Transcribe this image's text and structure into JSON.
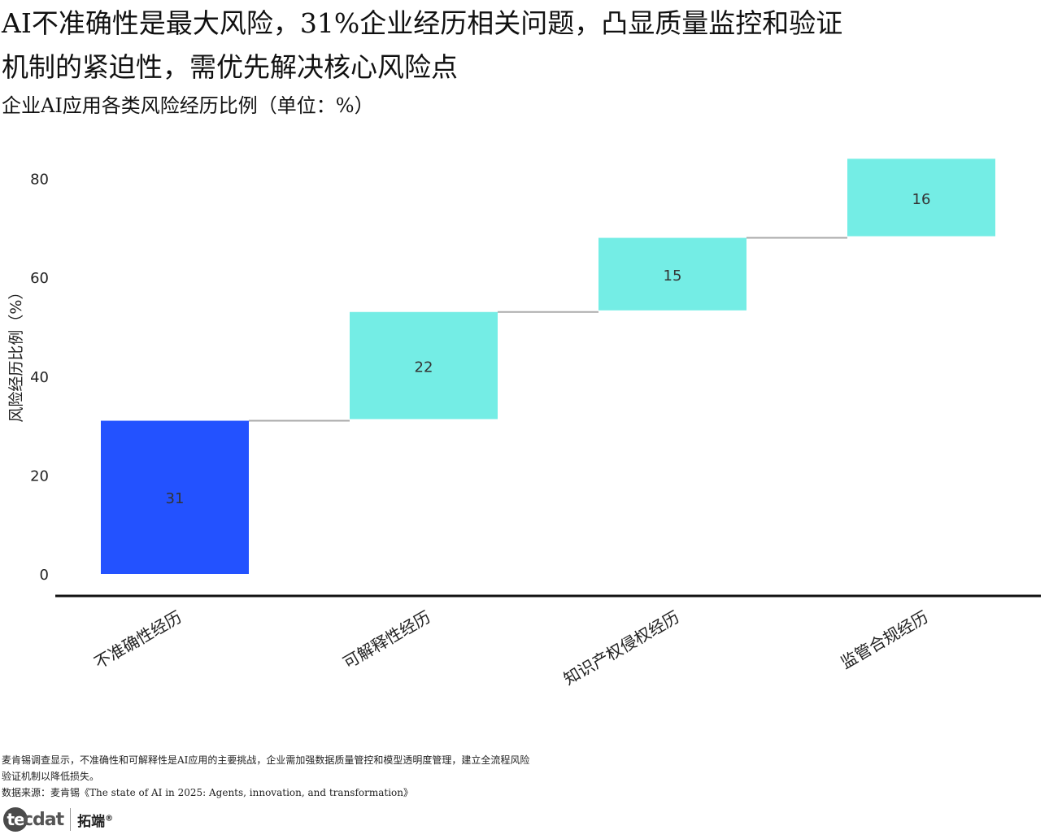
{
  "title": "AI不准确性是最大风险，31%企业经历相关问题，凸显质量监控和验证机制的紧迫性，需优先解决核心风险点",
  "subtitle": "企业AI应用各类风险经历比例（单位：%）",
  "chart_data": {
    "type": "waterfall",
    "categories": [
      "不准确性经历",
      "可解释性经历",
      "知识产权侵权经历",
      "监管合规经历"
    ],
    "values": [
      31,
      22,
      15,
      16
    ],
    "data_labels": [
      "31",
      "22",
      "15",
      "16"
    ],
    "ylabel": "风险经历比例（%）",
    "ylim": [
      0,
      86
    ],
    "yticks": [
      0,
      20,
      40,
      60,
      80
    ],
    "colors": {
      "first": "#2352FF",
      "increment": "#74EDE5",
      "connector": "#aaaaaa",
      "axis": "#111111"
    },
    "grid": false,
    "legend": "none"
  },
  "footer": {
    "note": "麦肯锡调查显示，不准确性和可解释性是AI应用的主要挑战，企业需加强数据质量管控和模型透明度管理，建立全流程风险验证机制以降低损失。",
    "source": "数据来源：麦肯锡《The state of AI in 2025: Agents, innovation, and transformation》"
  },
  "logo": {
    "mark": "tecdat",
    "cn": "拓端",
    "reg": "®"
  }
}
